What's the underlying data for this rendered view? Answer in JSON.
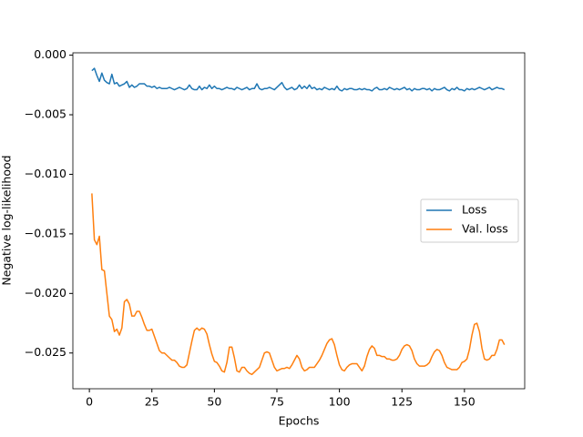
{
  "chart_data": {
    "type": "line",
    "xlabel": "Epochs",
    "ylabel": "Negative log-likelihood",
    "x": [
      1,
      2,
      3,
      4,
      5,
      6,
      7,
      8,
      9,
      10,
      11,
      12,
      13,
      14,
      15,
      16,
      17,
      18,
      19,
      20,
      21,
      22,
      23,
      24,
      25,
      26,
      27,
      28,
      29,
      30,
      31,
      32,
      33,
      34,
      35,
      36,
      37,
      38,
      39,
      40,
      41,
      42,
      43,
      44,
      45,
      46,
      47,
      48,
      49,
      50,
      51,
      52,
      53,
      54,
      55,
      56,
      57,
      58,
      59,
      60,
      61,
      62,
      63,
      64,
      65,
      66,
      67,
      68,
      69,
      70,
      71,
      72,
      73,
      74,
      75,
      76,
      77,
      78,
      79,
      80,
      81,
      82,
      83,
      84,
      85,
      86,
      87,
      88,
      89,
      90,
      91,
      92,
      93,
      94,
      95,
      96,
      97,
      98,
      99,
      100,
      101,
      102,
      103,
      104,
      105,
      106,
      107,
      108,
      109,
      110,
      111,
      112,
      113,
      114,
      115,
      116,
      117,
      118,
      119,
      120,
      121,
      122,
      123,
      124,
      125,
      126,
      127,
      128,
      129,
      130,
      131,
      132,
      133,
      134,
      135,
      136,
      137,
      138,
      139,
      140,
      141,
      142,
      143,
      144,
      145,
      146,
      147,
      148,
      149,
      150,
      151,
      152,
      153,
      154,
      155,
      156,
      157,
      158,
      159,
      160,
      161,
      162,
      163,
      164,
      165,
      166
    ],
    "series": [
      {
        "name": "Loss",
        "color": "#1f77b4",
        "values": [
          -0.0013,
          -0.0011,
          -0.0017,
          -0.0022,
          -0.0015,
          -0.0021,
          -0.0023,
          -0.0024,
          -0.0016,
          -0.0024,
          -0.0023,
          -0.0026,
          -0.0025,
          -0.0024,
          -0.0022,
          -0.0027,
          -0.0025,
          -0.0027,
          -0.0026,
          -0.0024,
          -0.0024,
          -0.0024,
          -0.0026,
          -0.0026,
          -0.0027,
          -0.0026,
          -0.0028,
          -0.0027,
          -0.0028,
          -0.0028,
          -0.0028,
          -0.0027,
          -0.0028,
          -0.0029,
          -0.0028,
          -0.0027,
          -0.0028,
          -0.0029,
          -0.0028,
          -0.0025,
          -0.0028,
          -0.0029,
          -0.0029,
          -0.0026,
          -0.0029,
          -0.0027,
          -0.0028,
          -0.0025,
          -0.0028,
          -0.0026,
          -0.0028,
          -0.0028,
          -0.0029,
          -0.0028,
          -0.0027,
          -0.0028,
          -0.0028,
          -0.0029,
          -0.0027,
          -0.0028,
          -0.0029,
          -0.0028,
          -0.0027,
          -0.0029,
          -0.0028,
          -0.0028,
          -0.0024,
          -0.0028,
          -0.0029,
          -0.0028,
          -0.0028,
          -0.0027,
          -0.0028,
          -0.0029,
          -0.0027,
          -0.0025,
          -0.0023,
          -0.0027,
          -0.0029,
          -0.0028,
          -0.0027,
          -0.0029,
          -0.0028,
          -0.0025,
          -0.0028,
          -0.0026,
          -0.0028,
          -0.0025,
          -0.0028,
          -0.0027,
          -0.0029,
          -0.0028,
          -0.0029,
          -0.0027,
          -0.0028,
          -0.0029,
          -0.0028,
          -0.0029,
          -0.0026,
          -0.0029,
          -0.003,
          -0.0028,
          -0.0029,
          -0.0028,
          -0.0028,
          -0.0029,
          -0.0029,
          -0.0028,
          -0.0029,
          -0.0028,
          -0.0029,
          -0.0029,
          -0.003,
          -0.0028,
          -0.0027,
          -0.0029,
          -0.0029,
          -0.0028,
          -0.0029,
          -0.0027,
          -0.0028,
          -0.0029,
          -0.0028,
          -0.0029,
          -0.0028,
          -0.0027,
          -0.0029,
          -0.0028,
          -0.003,
          -0.0028,
          -0.0029,
          -0.0029,
          -0.0028,
          -0.0028,
          -0.0029,
          -0.0028,
          -0.003,
          -0.0028,
          -0.0029,
          -0.0029,
          -0.0028,
          -0.0027,
          -0.0029,
          -0.003,
          -0.0028,
          -0.0029,
          -0.0027,
          -0.0029,
          -0.0029,
          -0.003,
          -0.0028,
          -0.0029,
          -0.0028,
          -0.0029,
          -0.0028,
          -0.0027,
          -0.0028,
          -0.0029,
          -0.0028,
          -0.0027,
          -0.0029,
          -0.0028,
          -0.0027,
          -0.0028,
          -0.0028,
          -0.0029
        ]
      },
      {
        "name": "Val. loss",
        "color": "#ff7f0e",
        "values": [
          -0.0116,
          -0.0155,
          -0.0159,
          -0.0152,
          -0.018,
          -0.0181,
          -0.02,
          -0.0219,
          -0.0222,
          -0.0232,
          -0.023,
          -0.0235,
          -0.0229,
          -0.0207,
          -0.0205,
          -0.0209,
          -0.0219,
          -0.0219,
          -0.0215,
          -0.0215,
          -0.022,
          -0.0226,
          -0.0231,
          -0.0231,
          -0.023,
          -0.0236,
          -0.0242,
          -0.0248,
          -0.025,
          -0.025,
          -0.0252,
          -0.0254,
          -0.0256,
          -0.0256,
          -0.0258,
          -0.0261,
          -0.0262,
          -0.0262,
          -0.026,
          -0.025,
          -0.024,
          -0.0231,
          -0.0229,
          -0.0231,
          -0.0229,
          -0.023,
          -0.0234,
          -0.0243,
          -0.0251,
          -0.0257,
          -0.0258,
          -0.0261,
          -0.0265,
          -0.0266,
          -0.0258,
          -0.0245,
          -0.0245,
          -0.0254,
          -0.0265,
          -0.0266,
          -0.0262,
          -0.0262,
          -0.0265,
          -0.0267,
          -0.0268,
          -0.0266,
          -0.0264,
          -0.0262,
          -0.0256,
          -0.025,
          -0.0249,
          -0.025,
          -0.0256,
          -0.0262,
          -0.0265,
          -0.0264,
          -0.0263,
          -0.0263,
          -0.0262,
          -0.0263,
          -0.026,
          -0.0256,
          -0.0252,
          -0.0255,
          -0.0262,
          -0.0265,
          -0.0264,
          -0.0262,
          -0.0262,
          -0.0262,
          -0.0259,
          -0.0256,
          -0.0252,
          -0.0247,
          -0.0242,
          -0.0239,
          -0.0238,
          -0.0243,
          -0.0252,
          -0.026,
          -0.0264,
          -0.0265,
          -0.0262,
          -0.026,
          -0.0259,
          -0.0259,
          -0.0259,
          -0.0262,
          -0.0265,
          -0.0261,
          -0.0253,
          -0.0247,
          -0.0244,
          -0.0246,
          -0.0252,
          -0.0252,
          -0.0253,
          -0.0253,
          -0.0255,
          -0.0255,
          -0.0256,
          -0.0256,
          -0.0255,
          -0.0252,
          -0.0247,
          -0.0244,
          -0.0243,
          -0.0244,
          -0.0248,
          -0.0255,
          -0.0259,
          -0.0261,
          -0.0261,
          -0.0261,
          -0.026,
          -0.0258,
          -0.0253,
          -0.0249,
          -0.0247,
          -0.0248,
          -0.0252,
          -0.0258,
          -0.0262,
          -0.0263,
          -0.0264,
          -0.0264,
          -0.0264,
          -0.0262,
          -0.0258,
          -0.0257,
          -0.0255,
          -0.0247,
          -0.0235,
          -0.0226,
          -0.0225,
          -0.0232,
          -0.0246,
          -0.0255,
          -0.0256,
          -0.0255,
          -0.0252,
          -0.0252,
          -0.0247,
          -0.0239,
          -0.0239,
          -0.0243
        ]
      }
    ],
    "xlim": [
      -6.6,
      174.1
    ],
    "xticks": [
      0,
      25,
      50,
      75,
      100,
      125,
      150
    ],
    "ylim": [
      -0.028,
      0.0002
    ],
    "yticks": [
      {
        "value": 0,
        "label": "0.000"
      },
      {
        "value": -0.005,
        "label": "−0.005"
      },
      {
        "value": -0.01,
        "label": "−0.010"
      },
      {
        "value": -0.015,
        "label": "−0.015"
      },
      {
        "value": -0.02,
        "label": "−0.020"
      },
      {
        "value": -0.025,
        "label": "−0.025"
      }
    ],
    "grid": false,
    "legend": "center right"
  }
}
